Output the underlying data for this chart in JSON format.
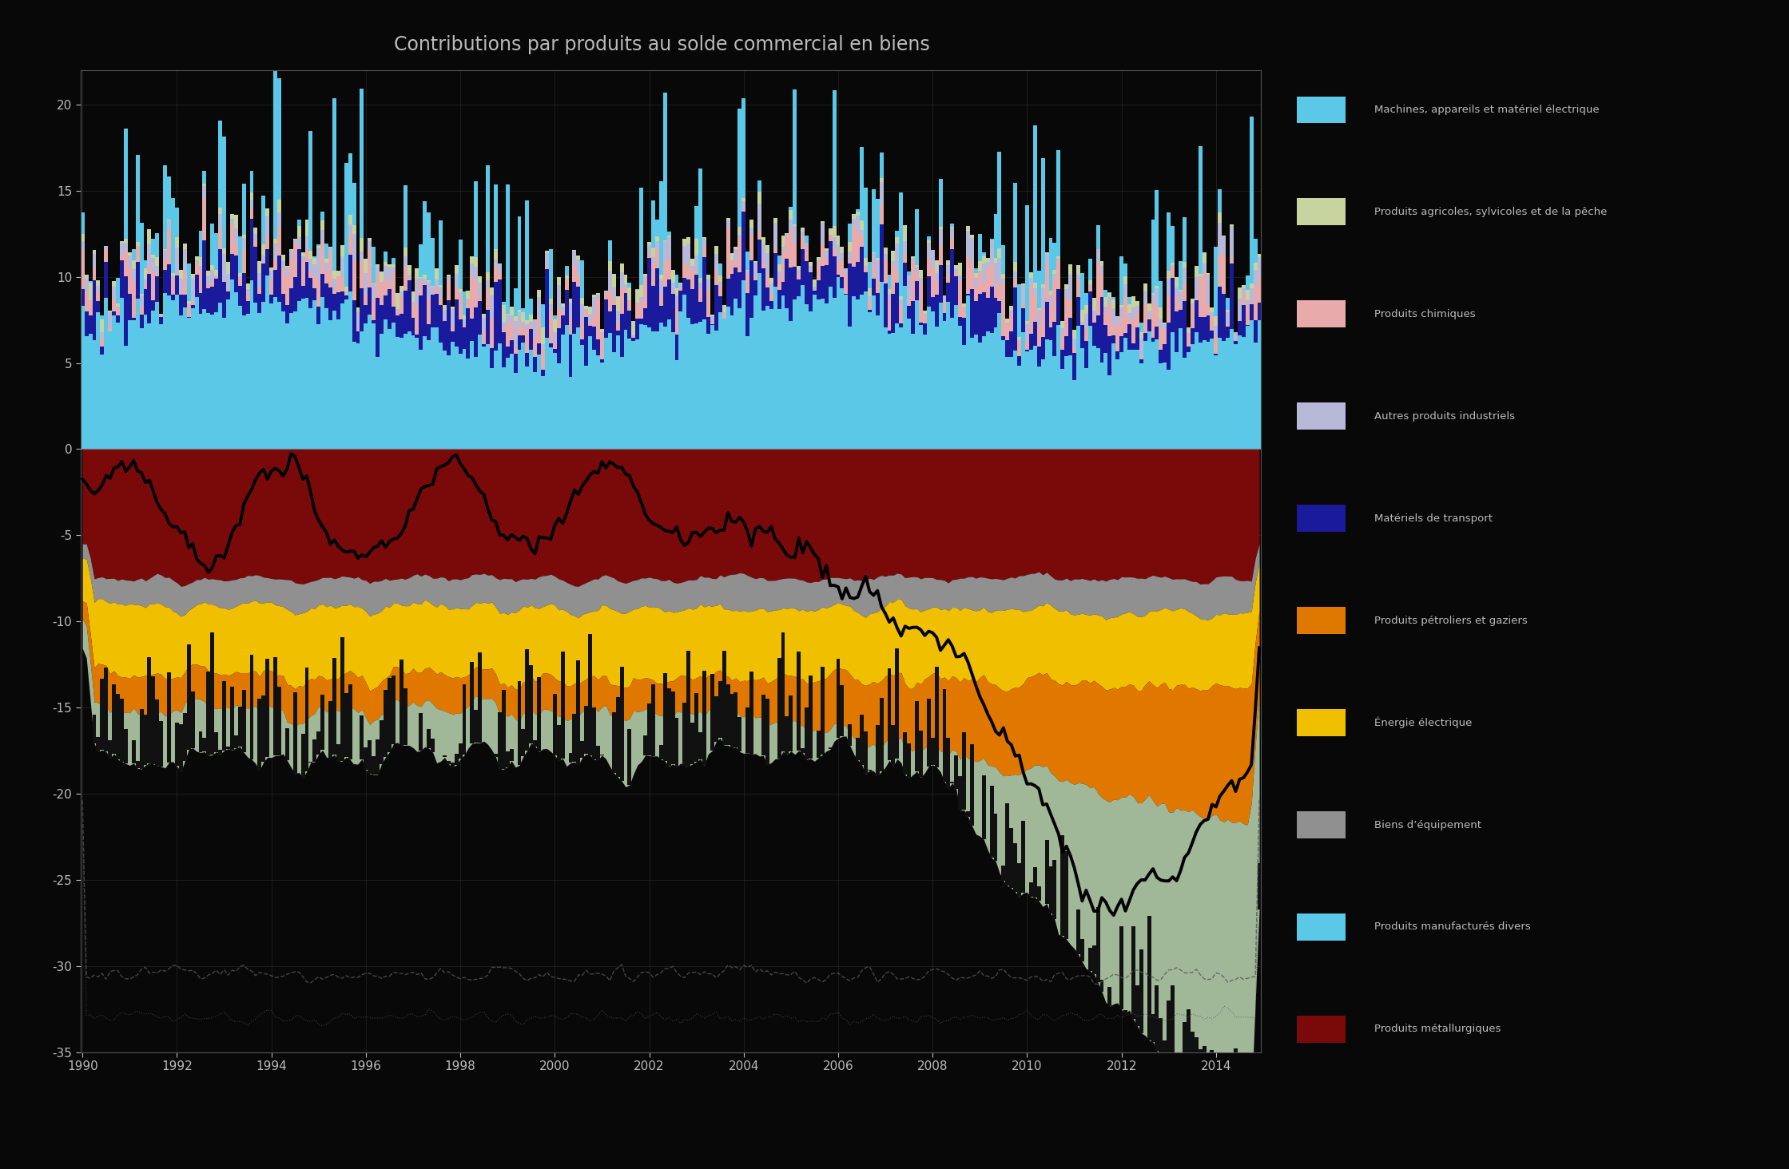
{
  "title": "Contributions par produits au solde commercial en biens",
  "background_color": "#080808",
  "plot_bg_color": "#080808",
  "text_color": "#bbbbbb",
  "grid_color": "#444444",
  "ylim": [
    -35,
    22
  ],
  "colors": {
    "sky_blue": "#5bc8e8",
    "dark_navy": "#1a1a9c",
    "pink": "#e8aaaa",
    "lavender": "#b8b8d8",
    "yellow_green": "#c8d4a0",
    "dark_red": "#7a0a0a",
    "gray": "#909090",
    "yellow": "#f0c000",
    "orange": "#e07800",
    "sage": "#a0b898"
  },
  "legend_colors": [
    "#5bc8e8",
    "#c8d4a0",
    "#e8aaaa",
    "#b8b8d8",
    "#1a1a9c",
    "#e07800",
    "#f0c000",
    "#909090",
    "#5bc8e8",
    "#7a0a0a"
  ],
  "legend_labels": [
    "Machines, appareils et matériel électrique",
    "Produits agricoles, sylvicoles et de la pêche",
    "Produits chimiques",
    "Autres produits industriels",
    "Matériels de transport",
    "Produits pétroliers et gaziers",
    "Énergie électrique",
    "Biens d’équipement",
    "Produits manufacturés divers",
    "Produits métallurgiques"
  ]
}
